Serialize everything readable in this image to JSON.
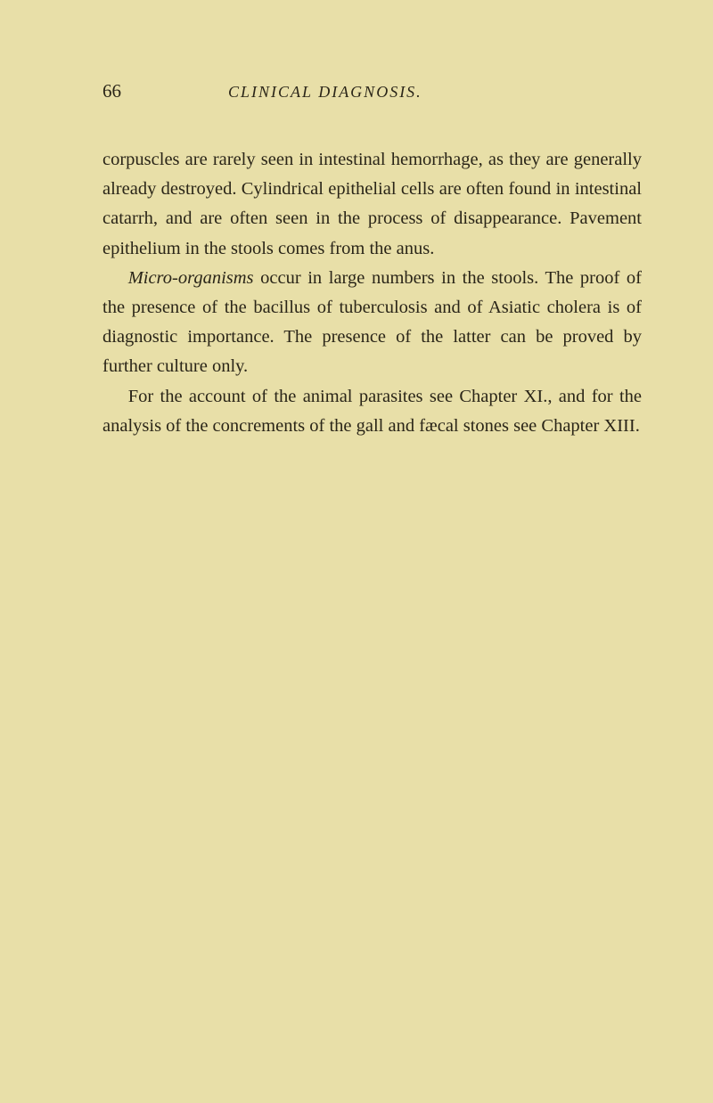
{
  "header": {
    "page_number": "66",
    "running_title": "CLINICAL DIAGNOSIS."
  },
  "paragraphs": {
    "p1": "corpuscles are rarely seen in intestinal hemorrhage, as they are generally already destroyed. Cylindrical epi­thelial cells are often found in intestinal catarrh, and are often seen in the process of disappearance. Pavement epithelium in the stools comes from the anus.",
    "p2_italic": "Micro-organisms",
    "p2_rest": " occur in large numbers in the stools. The proof of the presence of the bacillus of tuberculosis and of Asiatic cholera is of diagnostic importance. The presence of the latter can be proved by further culture only.",
    "p3": "For the account of the animal parasites see Chapter XI., and for the analysis of the concrements of the gall and fæcal stones see Chapter XIII."
  },
  "colors": {
    "background": "#e8dfa8",
    "text": "#2a2518"
  },
  "typography": {
    "body_fontsize": 20.5,
    "header_number_fontsize": 21,
    "header_title_fontsize": 18,
    "line_height": 1.62
  }
}
